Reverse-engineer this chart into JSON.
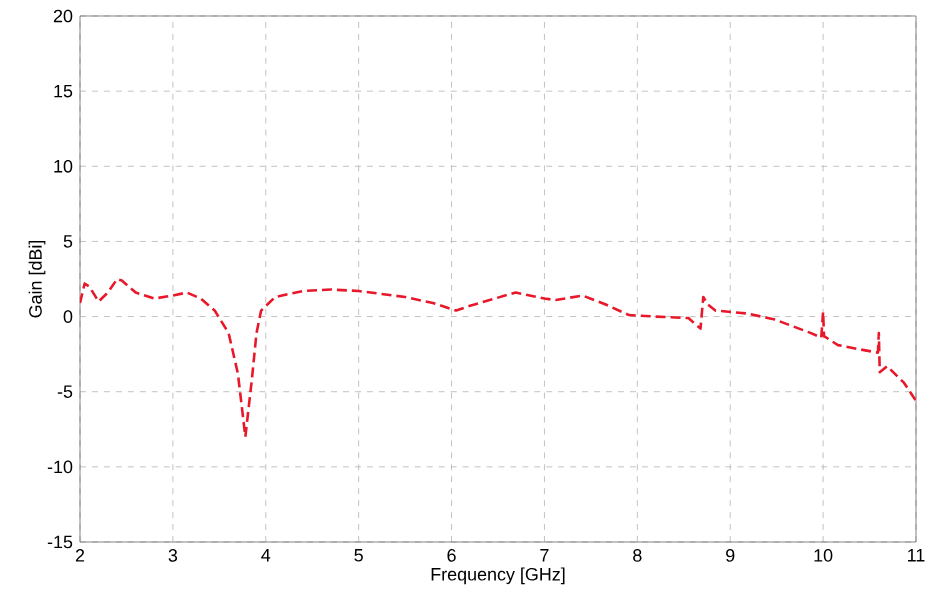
{
  "chart_data": {
    "type": "line",
    "xlabel": "Frequency [GHz]",
    "ylabel": "Gain [dBi]",
    "xlim": [
      2,
      11
    ],
    "ylim": [
      -15,
      20
    ],
    "xticks": [
      2,
      3,
      4,
      5,
      6,
      7,
      8,
      9,
      10,
      11
    ],
    "yticks": [
      -15,
      -10,
      -5,
      0,
      5,
      10,
      15,
      20
    ],
    "grid": true,
    "line_style": "dashed",
    "marker": "none",
    "series": [
      {
        "color": "#e8182a",
        "x": [
          2.0,
          2.05,
          2.1,
          2.2,
          2.3,
          2.4,
          2.45,
          2.6,
          2.8,
          3.0,
          3.15,
          3.3,
          3.45,
          3.6,
          3.7,
          3.78,
          3.85,
          3.9,
          3.95,
          4.1,
          4.4,
          4.7,
          5.0,
          5.5,
          5.8,
          6.05,
          6.19,
          6.41,
          6.69,
          7.0,
          7.12,
          7.41,
          7.66,
          7.91,
          8.19,
          8.55,
          8.68,
          8.71,
          8.76,
          8.84,
          9.19,
          9.48,
          9.87,
          9.98,
          10.0,
          10.01,
          10.16,
          10.41,
          10.59,
          10.6,
          10.61,
          10.69,
          10.87,
          11.0
        ],
        "values": [
          0.9,
          2.2,
          2.0,
          1.0,
          1.6,
          2.5,
          2.4,
          1.6,
          1.2,
          1.4,
          1.6,
          1.2,
          0.4,
          -1.1,
          -3.8,
          -8.0,
          -4.2,
          -1.1,
          0.4,
          1.3,
          1.7,
          1.8,
          1.7,
          1.3,
          0.9,
          0.4,
          0.7,
          1.1,
          1.6,
          1.2,
          1.1,
          1.4,
          0.8,
          0.1,
          0.0,
          -0.1,
          -0.8,
          1.3,
          0.8,
          0.4,
          0.2,
          -0.2,
          -1.1,
          -1.4,
          0.3,
          -1.3,
          -1.9,
          -2.2,
          -2.4,
          -1.1,
          -3.7,
          -3.3,
          -4.4,
          -5.6
        ]
      }
    ]
  }
}
